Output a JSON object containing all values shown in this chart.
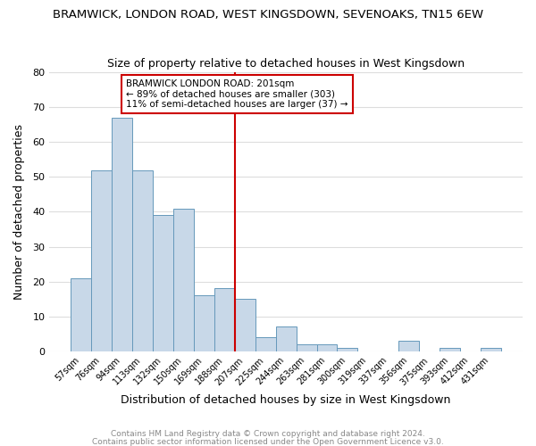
{
  "title": "BRAMWICK, LONDON ROAD, WEST KINGSDOWN, SEVENOAKS, TN15 6EW",
  "subtitle": "Size of property relative to detached houses in West Kingsdown",
  "xlabel": "Distribution of detached houses by size in West Kingsdown",
  "ylabel": "Number of detached properties",
  "bar_color": "#c8d8e8",
  "bar_edge_color": "#6699bb",
  "background_color": "#ffffff",
  "plot_bg_color": "#ffffff",
  "grid_color": "#dddddd",
  "categories": [
    "57sqm",
    "76sqm",
    "94sqm",
    "113sqm",
    "132sqm",
    "150sqm",
    "169sqm",
    "188sqm",
    "207sqm",
    "225sqm",
    "244sqm",
    "263sqm",
    "281sqm",
    "300sqm",
    "319sqm",
    "337sqm",
    "356sqm",
    "375sqm",
    "393sqm",
    "412sqm",
    "431sqm"
  ],
  "values": [
    21,
    52,
    67,
    52,
    39,
    41,
    16,
    18,
    15,
    4,
    7,
    2,
    2,
    1,
    0,
    0,
    3,
    0,
    1,
    0,
    1
  ],
  "ylim": [
    0,
    80
  ],
  "yticks": [
    0,
    10,
    20,
    30,
    40,
    50,
    60,
    70,
    80
  ],
  "vline_index": 8,
  "vline_color": "#cc0000",
  "annotation_title": "BRAMWICK LONDON ROAD: 201sqm",
  "annotation_line1": "← 89% of detached houses are smaller (303)",
  "annotation_line2": "11% of semi-detached houses are larger (37) →",
  "annotation_box_edge": "#cc0000",
  "footnote1": "Contains HM Land Registry data © Crown copyright and database right 2024.",
  "footnote2": "Contains public sector information licensed under the Open Government Licence v3.0.",
  "footnote_color": "#888888"
}
